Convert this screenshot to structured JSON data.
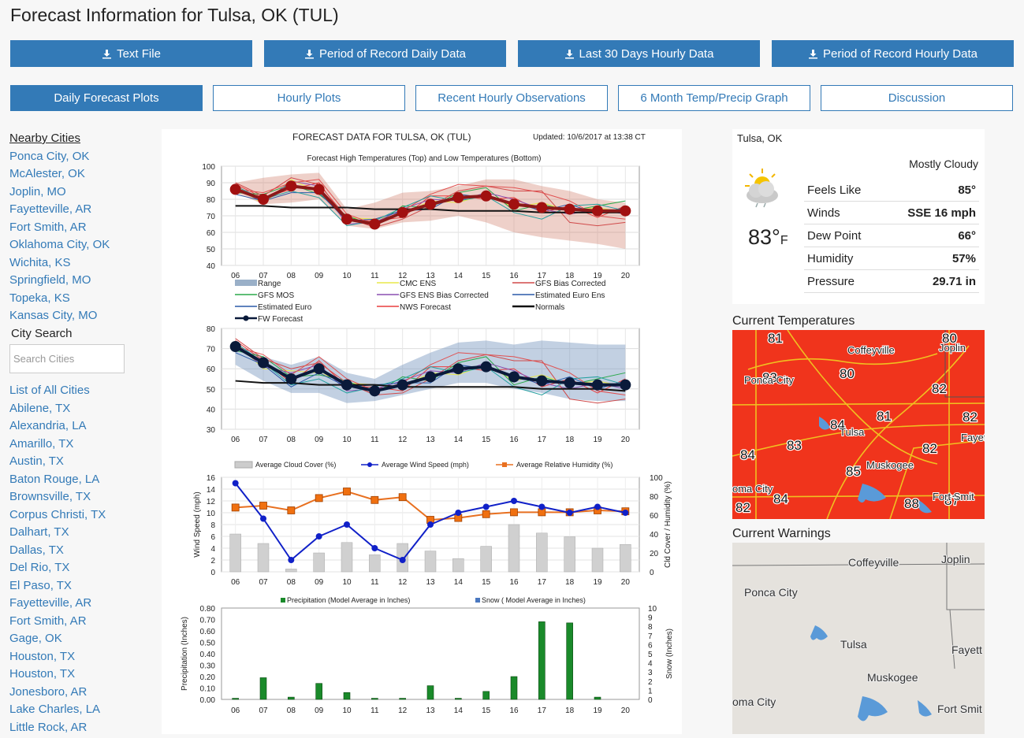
{
  "page": {
    "title": "Forecast Information for Tulsa, OK (TUL)"
  },
  "downloads": [
    "Text File",
    "Period of Record Daily Data",
    "Last 30 Days Hourly Data",
    "Period of Record Hourly Data"
  ],
  "tabs": [
    {
      "label": "Daily Forecast Plots",
      "active": true
    },
    {
      "label": "Hourly Plots",
      "active": false
    },
    {
      "label": "Recent Hourly Observations",
      "active": false
    },
    {
      "label": "6 Month Temp/Precip Graph",
      "active": false
    },
    {
      "label": "Discussion",
      "active": false
    }
  ],
  "sidebar": {
    "nearby_header": "Nearby Cities",
    "nearby": [
      "Ponca City, OK",
      "McAlester, OK",
      "Joplin, MO",
      "Fayetteville, AR",
      "Fort Smith, AR",
      "Oklahoma City, OK",
      "Wichita, KS",
      "Springfield, MO",
      "Topeka, KS",
      "Kansas City, MO"
    ],
    "search_header": "City Search",
    "search_placeholder": "Search Cities",
    "cities": [
      "List of All Cities",
      "Abilene, TX",
      "Alexandria, LA",
      "Amarillo, TX",
      "Austin, TX",
      "Baton Rouge, LA",
      "Brownsville, TX",
      "Corpus Christi, TX",
      "Dalhart, TX",
      "Dallas, TX",
      "Del Rio, TX",
      "El Paso, TX",
      "Fayetteville, AR",
      "Fort Smith, AR",
      "Gage, OK",
      "Houston, TX",
      "Houston, TX",
      "Jonesboro, AR",
      "Lake Charles, LA",
      "Little Rock, AR"
    ]
  },
  "current": {
    "location": "Tulsa, OK",
    "condition": "Mostly Cloudy",
    "temp": "83°",
    "temp_unit": "F",
    "icon": "partly-cloudy-sun-icon",
    "rows": [
      {
        "label": "Feels Like",
        "value": "85°"
      },
      {
        "label": "Winds",
        "value": "SSE 16 mph"
      },
      {
        "label": "Dew Point",
        "value": "66°"
      },
      {
        "label": "Humidity",
        "value": "57%"
      },
      {
        "label": "Pressure",
        "value": "29.71 in"
      }
    ]
  },
  "temps_map": {
    "title": "Current Temperatures",
    "labels": [
      "81",
      "80",
      "83",
      "80",
      "82",
      "84",
      "81",
      "82",
      "83",
      "82",
      "84",
      "85",
      "84",
      "82",
      "88",
      "87"
    ],
    "places": [
      "Coffeyville",
      "Joplin",
      "Ponca City",
      "Tulsa",
      "Fayett",
      "Muskogee",
      "oma City",
      "Fort Smit"
    ]
  },
  "warnings_map": {
    "title": "Current Warnings",
    "places": [
      "Coffeyville",
      "Joplin",
      "Ponca City",
      "Tulsa",
      "Fayett",
      "Muskogee",
      "oma City",
      "Fort Smit"
    ]
  },
  "forecast_header": {
    "title": "FORECAST DATA FOR TULSA, OK (TUL)",
    "updated": "Updated: 10/6/2017 at 13:38 CT"
  },
  "chart_data": [
    {
      "type": "line",
      "title": "Forecast  High Temperatures (Top)  and  Low  Temperatures  (Bottom)",
      "x": [
        "06",
        "07",
        "08",
        "09",
        "10",
        "11",
        "12",
        "13",
        "14",
        "15",
        "16",
        "17",
        "18",
        "19",
        "20"
      ],
      "ylim": [
        40,
        100
      ],
      "yticks": [
        "100",
        "90",
        "80",
        "70",
        "60",
        "50",
        "40"
      ],
      "series": [
        {
          "name": "FW Forecast",
          "values": [
            86,
            80,
            88,
            86,
            68,
            65,
            72,
            77,
            81,
            82,
            77,
            75,
            74,
            73,
            73
          ]
        },
        {
          "name": "Normals",
          "values": [
            76,
            76,
            75,
            75,
            75,
            74,
            74,
            74,
            73,
            73,
            73,
            72,
            72,
            72,
            72
          ]
        }
      ],
      "range_low": [
        84,
        77,
        78,
        80,
        64,
        62,
        66,
        67,
        70,
        66,
        60,
        57,
        55,
        53,
        50
      ],
      "range_high": [
        90,
        93,
        95,
        96,
        74,
        78,
        84,
        85,
        88,
        92,
        92,
        88,
        85,
        80,
        78
      ],
      "legend": [
        "Range",
        "CMC ENS",
        "GFS Bias Corrected",
        "GFS MOS",
        "GFS ENS Bias Corrected",
        "Estimated Euro Ens",
        "Estimated Euro",
        "NWS Forecast",
        "Normals",
        "FW Forecast"
      ]
    },
    {
      "type": "line",
      "x": [
        "06",
        "07",
        "08",
        "09",
        "10",
        "11",
        "12",
        "13",
        "14",
        "15",
        "16",
        "17",
        "18",
        "19",
        "20"
      ],
      "ylim": [
        30,
        80
      ],
      "yticks": [
        "80",
        "70",
        "60",
        "50",
        "40",
        "30"
      ],
      "series": [
        {
          "name": "FW Forecast",
          "values": [
            71,
            63,
            55,
            60,
            52,
            49,
            52,
            56,
            60,
            61,
            56,
            54,
            53,
            52,
            52
          ]
        },
        {
          "name": "Normals",
          "values": [
            54,
            53,
            53,
            52,
            52,
            52,
            51,
            51,
            51,
            51,
            51,
            50,
            50,
            50,
            49
          ]
        }
      ],
      "range_low": [
        62,
        54,
        48,
        48,
        43,
        44,
        47,
        50,
        53,
        53,
        50,
        48,
        45,
        44,
        44
      ],
      "range_high": [
        72,
        66,
        62,
        66,
        58,
        55,
        62,
        68,
        73,
        74,
        72,
        74,
        73,
        72,
        72
      ]
    },
    {
      "type": "bar",
      "legend": [
        "Average Cloud Cover (%)",
        "Average Wind Speed (mph)",
        "Average Relative Humidity (%)"
      ],
      "x": [
        "06",
        "07",
        "08",
        "09",
        "10",
        "11",
        "12",
        "13",
        "14",
        "15",
        "16",
        "17",
        "18",
        "19",
        "20"
      ],
      "ylabel_left": "Wind Speed (mph)",
      "ylabel_right": "Cld Cover / Humidity (%)",
      "ylim_left": [
        0,
        16
      ],
      "ylim_right": [
        0,
        100
      ],
      "yticks_left": [
        "16",
        "14",
        "12",
        "10",
        "8",
        "6",
        "4",
        "2",
        "0"
      ],
      "yticks_right": [
        "100",
        "80",
        "60",
        "40",
        "20",
        "0"
      ],
      "cloud_cover": [
        40,
        30,
        3,
        20,
        31,
        18,
        30,
        22,
        14,
        27,
        50,
        41,
        37,
        25,
        29
      ],
      "wind_speed": [
        15,
        9,
        2,
        6,
        8,
        4,
        2,
        8,
        10,
        11,
        12,
        11,
        10,
        11,
        10
      ],
      "humidity": [
        68,
        70,
        65,
        78,
        85,
        76,
        79,
        55,
        57,
        61,
        63,
        63,
        63,
        65,
        64
      ]
    },
    {
      "type": "bar",
      "legend": [
        "Precipitation (Model Average in Inches)",
        "Snow ( Model Average in Inches)"
      ],
      "x": [
        "06",
        "07",
        "08",
        "09",
        "10",
        "11",
        "12",
        "13",
        "14",
        "15",
        "16",
        "17",
        "18",
        "19",
        "20"
      ],
      "ylabel_left": "Precipitation    (Inches)",
      "ylabel_right": "Snow    (Inches)",
      "ylim_left": [
        0,
        0.8
      ],
      "ylim_right": [
        0,
        10
      ],
      "yticks_left": [
        "0.80",
        "0.70",
        "0.60",
        "0.50",
        "0.40",
        "0.30",
        "0.20",
        "0.10",
        "0.00"
      ],
      "yticks_right": [
        "10",
        "9",
        "8",
        "7",
        "6",
        "5",
        "4",
        "3",
        "2",
        "1",
        "0"
      ],
      "precip": [
        0.01,
        0.19,
        0.02,
        0.14,
        0.06,
        0.01,
        0.01,
        0.12,
        0.01,
        0.07,
        0.2,
        0.68,
        0.67,
        0.02,
        0
      ],
      "snow": [
        0,
        0,
        0,
        0,
        0,
        0,
        0,
        0,
        0,
        0,
        0,
        0,
        0,
        0,
        0
      ]
    }
  ]
}
